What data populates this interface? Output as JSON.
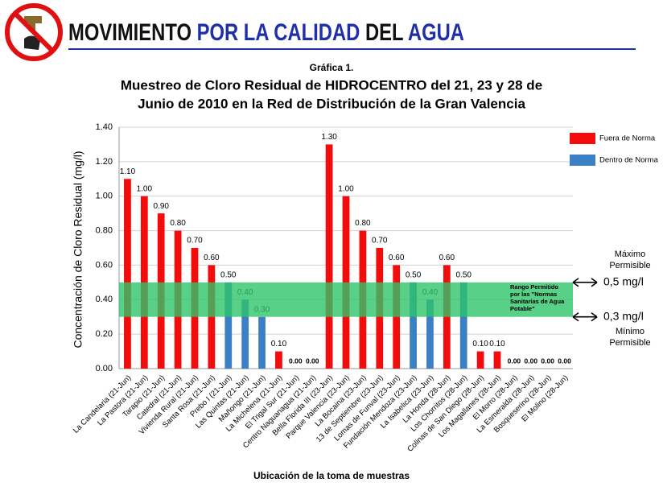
{
  "header": {
    "parts": [
      {
        "text": "MOVIMIENTO",
        "color": "#111111"
      },
      {
        "text": "POR LA CALIDAD",
        "color": "#1f2fa8"
      },
      {
        "text": "DEL",
        "color": "#111111"
      },
      {
        "text": "AGUA",
        "color": "#1f2fa8"
      }
    ]
  },
  "chart_data": {
    "type": "bar",
    "subtitle": "Gráfica 1.",
    "title": [
      "Muestreo de Cloro Residual de HIDROCENTRO del 21, 23 y 28 de",
      "Junio de 2010 en la Red de Distribución de la Gran Valencia"
    ],
    "y_label": "Concentración de Cloro Residual (mg/l)",
    "x_label": "Ubicación de la toma de muestras",
    "categories": [
      "La Candelaria (21-Jun)",
      "La Pastora (21-Jun)",
      "Tarapio (21-Jun)",
      "Catedral (21-Jun)",
      "Vivienda Rural (21-Jun)",
      "Santa Rosa (21-Jun)",
      "Prebo I (21-Jun)",
      "Las Quintas (21-Jun)",
      "Mañongo (21-Jun)",
      "La Michelena (21-Jun)",
      "El Trigal Sur (21-Jun)",
      "Centro Naguanagua (21-Jun)",
      "Bella Florida III (23-Jun)",
      "Parque Valencia (23-Jun)",
      "La Bocaina (23-Jun)",
      "13 de Septiembre (23-Jun)",
      "Lomas de Funval (23-Jun)",
      "Fundación Mendoza (23-Jun)",
      "La Isabelica (23-Jun)",
      "La Honda (28-Jun)",
      "Los Chorritos (28-Jun)",
      "Colinas de San Diego (28-Jun)",
      "Los Magallanes (28-Jun)",
      "El Morro (28-Jun)",
      "La Esmeralda (28-Jun)",
      "Bosqueserino (28-Jun)",
      "El Molino (28-Jun)"
    ],
    "series": [
      {
        "name": "Fuera de Norma",
        "color": "#f20c0c",
        "values": [
          1.1,
          1.0,
          0.9,
          0.8,
          0.7,
          0.6,
          null,
          null,
          null,
          0.1,
          0,
          0,
          1.3,
          1.0,
          0.8,
          0.7,
          0.6,
          null,
          null,
          0.6,
          null,
          0.1,
          0.1,
          0,
          0,
          0,
          0
        ],
        "value_labels": [
          "1.10",
          "1.00",
          "0.90",
          "0.80",
          "0.70",
          "0.60",
          null,
          null,
          null,
          "0.10",
          "0.00",
          "0.00",
          "1.30",
          "1.00",
          "0.80",
          "0.70",
          "0.60",
          null,
          null,
          "0.60",
          null,
          "0.10",
          "0.10",
          "0.00",
          "0.00",
          "0.00",
          "0.00"
        ]
      },
      {
        "name": "Dentro de Norma",
        "color": "#3b7fc4",
        "values": [
          null,
          null,
          null,
          null,
          null,
          null,
          0.5,
          0.4,
          0.3,
          null,
          null,
          null,
          null,
          null,
          null,
          null,
          null,
          0.5,
          0.4,
          null,
          0.5,
          null,
          null,
          null,
          null,
          null,
          null
        ],
        "value_labels": [
          null,
          null,
          null,
          null,
          null,
          null,
          "0.50",
          "0.40",
          "0.30",
          null,
          null,
          null,
          null,
          null,
          null,
          null,
          null,
          "0.50",
          "0.40",
          null,
          "0.50",
          null,
          null,
          null,
          null,
          null,
          null
        ]
      }
    ],
    "ylim": [
      0,
      1.4
    ],
    "yticks": [
      {
        "value": 0,
        "label": "0.00"
      },
      {
        "value": 0.2,
        "label": "0.20"
      },
      {
        "value": 0.4,
        "label": "0.40"
      },
      {
        "value": 0.6,
        "label": "0.60"
      },
      {
        "value": 0.8,
        "label": "0.80"
      },
      {
        "value": 1.0,
        "label": "1.00"
      },
      {
        "value": 1.2,
        "label": "1.20"
      },
      {
        "value": 1.4,
        "label": "1.40"
      }
    ],
    "grid": true,
    "legend": "top-right",
    "band": {
      "range": [
        0.3,
        0.5
      ],
      "color": "#2ec46a",
      "label": [
        "Rango Permitido",
        "por las \"Normas",
        "Sanitarias de Agua",
        "Potable\""
      ],
      "upper": "0,5 mg/l",
      "lower": "0,3 mg/l",
      "upper_note": [
        "Máximo",
        "Permisible"
      ],
      "lower_note": [
        "Mínimo",
        "Permisible"
      ]
    }
  }
}
